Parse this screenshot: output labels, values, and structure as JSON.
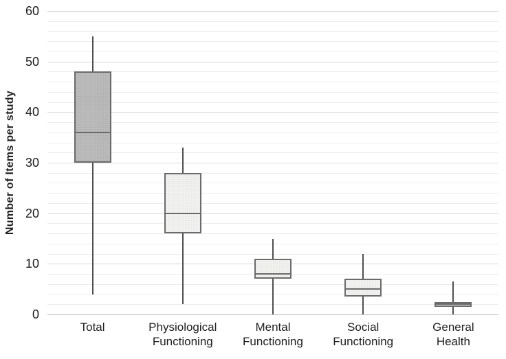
{
  "chart_data": {
    "type": "box",
    "title": "",
    "ylabel": "Number of Items per study",
    "xlabel": "",
    "ylim": [
      0,
      60
    ],
    "y_major_step": 10,
    "y_minor_step": 2,
    "y_tick_labels": [
      "0",
      "10",
      "20",
      "30",
      "40",
      "50",
      "60"
    ],
    "grid": "horizontal only; minor lines every 2 units (light), major every 10 units (darker)",
    "legend_position": "none",
    "categories": [
      "Total",
      "Physiological Functioning",
      "Mental Functioning",
      "Social Functioning",
      "General Health"
    ],
    "category_label_lines": [
      [
        "Total"
      ],
      [
        "Physiological",
        "Functioning"
      ],
      [
        "Mental",
        "Functioning"
      ],
      [
        "Social",
        "Functioning"
      ],
      [
        "General",
        "Health"
      ]
    ],
    "series": [
      {
        "category": "Total",
        "min": 4,
        "q1": 30,
        "median": 36,
        "q3": 48,
        "max": 55,
        "fill": "#bcbcbc",
        "fill_style": "dark"
      },
      {
        "category": "Physiological Functioning",
        "min": 2,
        "q1": 16,
        "median": 20,
        "q3": 28,
        "max": 33,
        "fill": "#f2f2f1",
        "fill_style": "light"
      },
      {
        "category": "Mental Functioning",
        "min": 0,
        "q1": 7,
        "median": 8,
        "q3": 11,
        "max": 15,
        "fill": "#f2f2f1",
        "fill_style": "light"
      },
      {
        "category": "Social Functioning",
        "min": 0,
        "q1": 3.5,
        "median": 5,
        "q3": 7,
        "max": 12,
        "fill": "#f2f2f1",
        "fill_style": "light"
      },
      {
        "category": "General Health",
        "min": 0,
        "q1": 1.5,
        "median": 2,
        "q3": 2.5,
        "max": 6.5,
        "fill": "#f2f2f1",
        "fill_style": "light"
      }
    ],
    "colors": {
      "box_border": "#6b6b6b",
      "median_line": "#6b6b6b",
      "whisker": "#4f4f4f",
      "major_gridline": "#d7d7d7",
      "minor_gridline": "#ececec",
      "zero_line": "#c2c2c2",
      "text": "#202020",
      "background": "#ffffff"
    }
  }
}
